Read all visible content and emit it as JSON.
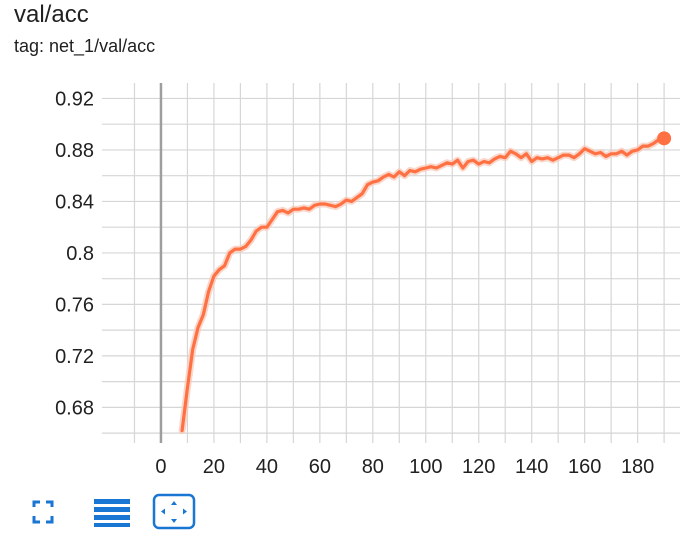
{
  "card": {
    "title": "val/acc",
    "tag": "tag: net_1/val/acc"
  },
  "colors": {
    "series": "#ff7043",
    "series_raw": "#f8c9b8",
    "grid": "#d6d6d6",
    "zero_line": "#9e9e9e",
    "toolbar_icon": "#1976d2"
  },
  "toolbar": {
    "icons": [
      "fullscreen-icon",
      "toggle-log-scale-icon",
      "fit-domain-icon"
    ]
  },
  "chart_data": {
    "type": "line",
    "title": "val/acc",
    "xlabel": "",
    "ylabel": "",
    "xlim": [
      -20,
      196
    ],
    "ylim": [
      0.657,
      0.932
    ],
    "x_ticks": [
      0,
      20,
      40,
      60,
      80,
      100,
      120,
      140,
      160,
      180
    ],
    "x_tick_labels": [
      "0",
      "20",
      "40",
      "60",
      "80",
      "100",
      "120",
      "140",
      "160",
      "180"
    ],
    "y_ticks": [
      0.68,
      0.72,
      0.76,
      0.8,
      0.84,
      0.88,
      0.92
    ],
    "y_tick_labels": [
      "0.68",
      "0.72",
      "0.76",
      "0.8",
      "0.84",
      "0.88",
      "0.92"
    ],
    "grid": true,
    "series": [
      {
        "x": [
          8,
          10,
          12,
          14,
          16,
          18,
          20,
          22,
          24,
          26,
          28,
          30,
          32,
          34,
          36,
          38,
          40,
          42,
          44,
          46,
          48,
          50,
          52,
          54,
          56,
          58,
          60,
          62,
          64,
          66,
          68,
          70,
          72,
          74,
          76,
          78,
          80,
          82,
          84,
          86,
          88,
          90,
          92,
          94,
          96,
          98,
          100,
          102,
          104,
          106,
          108,
          110,
          112,
          114,
          116,
          118,
          120,
          122,
          124,
          126,
          128,
          130,
          132,
          134,
          136,
          138,
          140,
          142,
          144,
          146,
          148,
          150,
          152,
          154,
          156,
          158,
          160,
          162,
          164,
          166,
          168,
          170,
          172,
          174,
          176,
          178,
          180,
          182,
          184,
          186,
          188,
          190
        ],
        "y": [
          0.662,
          0.695,
          0.725,
          0.742,
          0.752,
          0.77,
          0.782,
          0.787,
          0.79,
          0.8,
          0.803,
          0.803,
          0.805,
          0.81,
          0.817,
          0.82,
          0.82,
          0.826,
          0.832,
          0.833,
          0.831,
          0.834,
          0.834,
          0.835,
          0.834,
          0.837,
          0.838,
          0.838,
          0.837,
          0.836,
          0.838,
          0.841,
          0.84,
          0.843,
          0.846,
          0.853,
          0.855,
          0.856,
          0.859,
          0.861,
          0.859,
          0.863,
          0.86,
          0.864,
          0.863,
          0.865,
          0.866,
          0.867,
          0.866,
          0.868,
          0.87,
          0.869,
          0.872,
          0.866,
          0.871,
          0.872,
          0.869,
          0.871,
          0.87,
          0.873,
          0.875,
          0.874,
          0.879,
          0.877,
          0.874,
          0.877,
          0.871,
          0.874,
          0.873,
          0.874,
          0.872,
          0.874,
          0.876,
          0.876,
          0.874,
          0.877,
          0.881,
          0.879,
          0.877,
          0.878,
          0.875,
          0.877,
          0.877,
          0.879,
          0.876,
          0.879,
          0.88,
          0.883,
          0.883,
          0.885,
          0.888,
          0.889
        ]
      }
    ]
  }
}
